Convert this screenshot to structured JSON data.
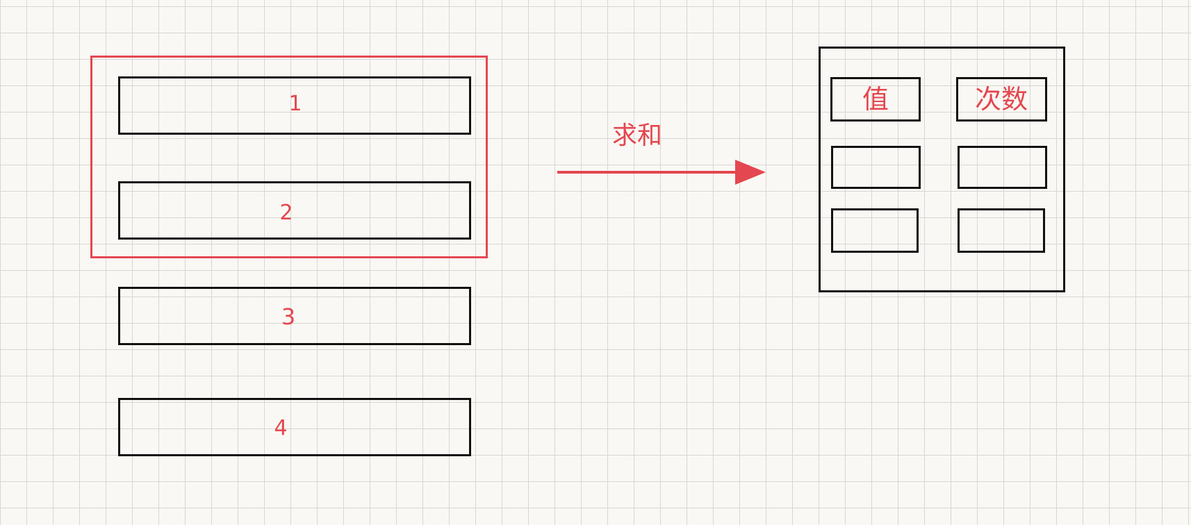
{
  "source_rows": [
    {
      "label": "1"
    },
    {
      "label": "2"
    },
    {
      "label": "3"
    },
    {
      "label": "4"
    }
  ],
  "arrow": {
    "label": "求和",
    "color": "#e4474f"
  },
  "result_table": {
    "headers": [
      "值",
      "次数"
    ],
    "empty_rows": 2
  },
  "colors": {
    "ink": "#111111",
    "accent": "#e4474f",
    "paper": "#faf8f4",
    "grid": "#d8d6d2"
  }
}
